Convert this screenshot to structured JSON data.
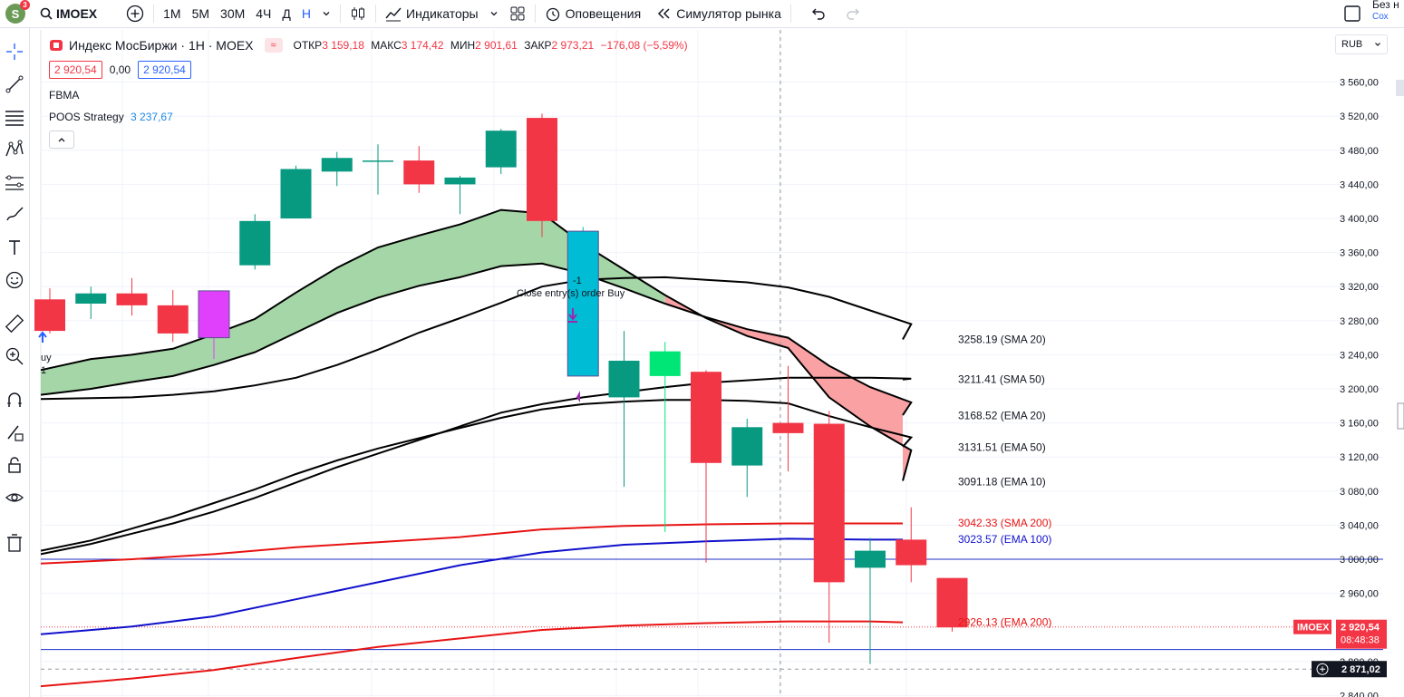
{
  "topbar": {
    "avatar_letter": "S",
    "avatar_badge": "3",
    "symbol": "IMOEX",
    "intervals": [
      "1M",
      "5M",
      "30M",
      "4Ч",
      "Д",
      "Н"
    ],
    "active_interval": "Н",
    "indicators_label": "Индикаторы",
    "alerts_label": "Оповещения",
    "replay_label": "Симулятор рынка",
    "right_title": "Без н",
    "right_sub": "Сох"
  },
  "legend": {
    "title": "Индекс МосБиржи · 1Н · MOEX",
    "open_label": "ОТКР",
    "open": "3 159,18",
    "high_label": "МАКС",
    "high": "3 174,42",
    "low_label": "МИН",
    "low": "2 901,61",
    "close_label": "ЗАКР",
    "close": "2 973,21",
    "change": "−176,08 (−5,59%)",
    "bid": "2 920,54",
    "spread": "0,00",
    "ask": "2 920,54",
    "indicator1": "FBMA",
    "indicator2_name": "POOS Strategy",
    "indicator2_value": "3 237,67"
  },
  "currency": "RUB",
  "chart_data": {
    "type": "candlestick",
    "symbol": "IMOEX",
    "interval": "1Н",
    "y_axis_labels": [
      "3 560,00",
      "3 520,00",
      "3 480,00",
      "3 440,00",
      "3 400,00",
      "3 360,00",
      "3 320,00",
      "3 280,00",
      "3 240,00",
      "3 200,00",
      "3 160,00",
      "3 120,00",
      "3 080,00",
      "3 040,00",
      "3 000,00",
      "2 960,00",
      "2 880,00",
      "2 840,00"
    ],
    "ylim": [
      2840,
      3580
    ],
    "candles": [
      {
        "o": 3305,
        "h": 3318,
        "l": 3265,
        "c": 3268
      },
      {
        "o": 3300,
        "h": 3320,
        "l": 3282,
        "c": 3312
      },
      {
        "o": 3312,
        "h": 3330,
        "l": 3286,
        "c": 3298
      },
      {
        "o": 3298,
        "h": 3316,
        "l": 3255,
        "c": 3265
      },
      {
        "o": 3260,
        "h": 3315,
        "l": 3235,
        "c": 3315,
        "marker": "magenta"
      },
      {
        "o": 3345,
        "h": 3405,
        "l": 3340,
        "c": 3397
      },
      {
        "o": 3400,
        "h": 3462,
        "l": 3400,
        "c": 3458
      },
      {
        "o": 3455,
        "h": 3478,
        "l": 3438,
        "c": 3471
      },
      {
        "o": 3468,
        "h": 3487,
        "l": 3428,
        "c": 3468
      },
      {
        "o": 3468,
        "h": 3485,
        "l": 3430,
        "c": 3440
      },
      {
        "o": 3440,
        "h": 3450,
        "l": 3405,
        "c": 3448
      },
      {
        "o": 3460,
        "h": 3505,
        "l": 3452,
        "c": 3503
      },
      {
        "o": 3518,
        "h": 3523,
        "l": 3378,
        "c": 3397
      },
      {
        "o": 3385,
        "h": 3390,
        "l": 3215,
        "c": 3215,
        "marker": "cyan"
      },
      {
        "o": 3190,
        "h": 3268,
        "l": 3085,
        "c": 3233
      },
      {
        "o": 3215,
        "h": 3255,
        "l": 3032,
        "c": 3244,
        "marker": "bright-green"
      },
      {
        "o": 3220,
        "h": 3222,
        "l": 2996,
        "c": 3113
      },
      {
        "o": 3110,
        "h": 3165,
        "l": 3073,
        "c": 3155
      },
      {
        "o": 3160,
        "h": 3227,
        "l": 3103,
        "c": 3148
      },
      {
        "o": 3159,
        "h": 3174,
        "l": 2902,
        "c": 2973
      },
      {
        "o": 2990,
        "h": 3025,
        "l": 2877,
        "c": 3010
      },
      {
        "o": 3023,
        "h": 3061,
        "l": 2973,
        "c": 2993
      },
      {
        "o": 2978,
        "h": 2978,
        "l": 2915,
        "c": 2920
      }
    ],
    "series": [
      {
        "name": "SMA 20",
        "value": "3258.19",
        "color": "#000000"
      },
      {
        "name": "SMA 50",
        "value": "3211.41",
        "color": "#000000"
      },
      {
        "name": "EMA 20",
        "value": "3168.52",
        "color": "#000000"
      },
      {
        "name": "EMA 50",
        "value": "3131.51",
        "color": "#000000"
      },
      {
        "name": "EMA 10",
        "value": "3091.18",
        "color": "#000000"
      },
      {
        "name": "SMA 200",
        "value": "3042.33",
        "color": "#e81313"
      },
      {
        "name": "EMA 100",
        "value": "3023.57",
        "color": "#1010cc"
      },
      {
        "name": "EMA 200",
        "value": "2926.13",
        "color": "#e81313"
      }
    ],
    "series_labels": [
      "3258.19 (SMA 20)",
      "3211.41 (SMA 50)",
      "3168.52 (EMA 20)",
      "3131.51 (EMA 50)",
      "3091.18 (EMA 10)",
      "3042.33 (SMA 200)",
      "3023.57 (EMA 100)",
      "2926.13 (EMA 200)"
    ],
    "annotation_close": "Close entry(s) order Buy",
    "annotation_close_qty": "-1",
    "annotation_buy": "uy",
    "annotation_buy_qty": "1",
    "price_tag_symbol": "IMOEX",
    "price_tag_value": "2 920,54",
    "price_tag_timer": "08:48:38",
    "crosshair_value": "2 871,02",
    "horizontal_lines": [
      3000,
      2894
    ],
    "colors": {
      "up": "#089981",
      "down": "#f23645",
      "bull_fill": "#a5d6a7",
      "bear_fill": "#faa1a4"
    }
  }
}
